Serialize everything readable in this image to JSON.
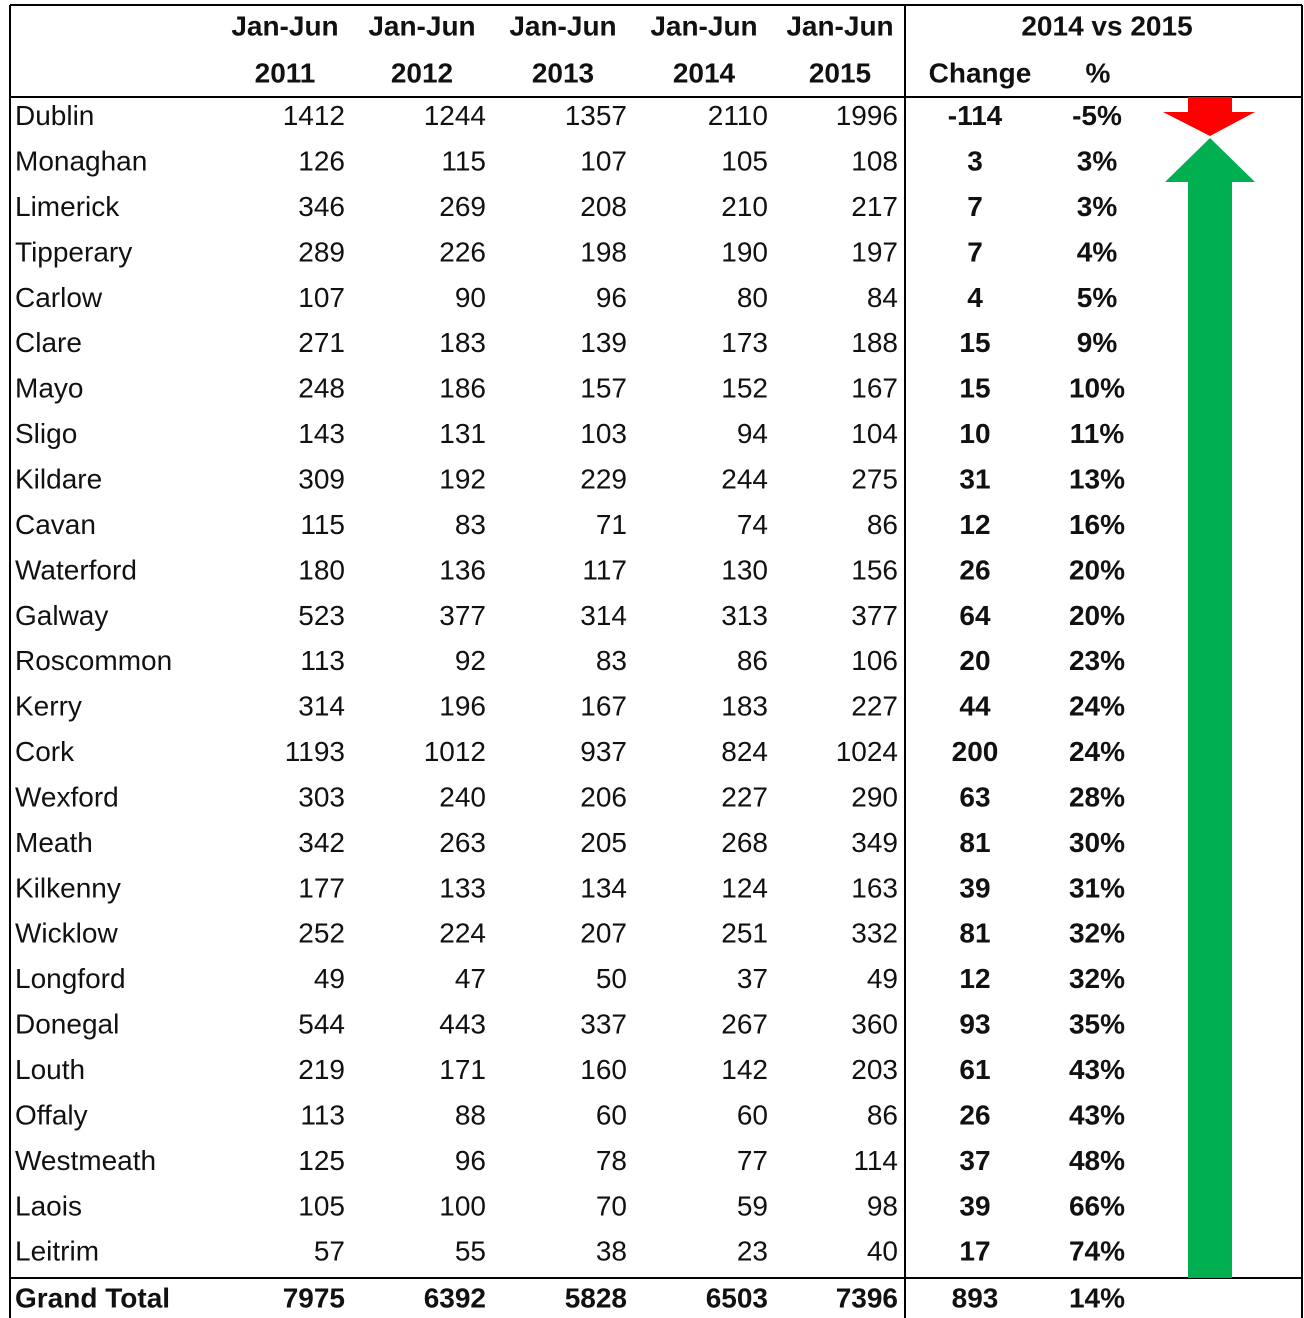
{
  "table": {
    "header": {
      "group": "2014 vs 2015",
      "change": "Change",
      "percent": "%",
      "periods": [
        {
          "line1": "Jan-Jun",
          "line2": "2011"
        },
        {
          "line1": "Jan-Jun",
          "line2": "2012"
        },
        {
          "line1": "Jan-Jun",
          "line2": "2013"
        },
        {
          "line1": "Jan-Jun",
          "line2": "2014"
        },
        {
          "line1": "Jan-Jun",
          "line2": "2015"
        }
      ]
    },
    "rows": [
      [
        "Dublin",
        1412,
        1244,
        1357,
        2110,
        1996,
        -114,
        "-5%"
      ],
      [
        "Monaghan",
        126,
        115,
        107,
        105,
        108,
        3,
        "3%"
      ],
      [
        "Limerick",
        346,
        269,
        208,
        210,
        217,
        7,
        "3%"
      ],
      [
        "Tipperary",
        289,
        226,
        198,
        190,
        197,
        7,
        "4%"
      ],
      [
        "Carlow",
        107,
        90,
        96,
        80,
        84,
        4,
        "5%"
      ],
      [
        "Clare",
        271,
        183,
        139,
        173,
        188,
        15,
        "9%"
      ],
      [
        "Mayo",
        248,
        186,
        157,
        152,
        167,
        15,
        "10%"
      ],
      [
        "Sligo",
        143,
        131,
        103,
        94,
        104,
        10,
        "11%"
      ],
      [
        "Kildare",
        309,
        192,
        229,
        244,
        275,
        31,
        "13%"
      ],
      [
        "Cavan",
        115,
        83,
        71,
        74,
        86,
        12,
        "16%"
      ],
      [
        "Waterford",
        180,
        136,
        117,
        130,
        156,
        26,
        "20%"
      ],
      [
        "Galway",
        523,
        377,
        314,
        313,
        377,
        64,
        "20%"
      ],
      [
        "Roscommon",
        113,
        92,
        83,
        86,
        106,
        20,
        "23%"
      ],
      [
        "Kerry",
        314,
        196,
        167,
        183,
        227,
        44,
        "24%"
      ],
      [
        "Cork",
        1193,
        1012,
        937,
        824,
        1024,
        200,
        "24%"
      ],
      [
        "Wexford",
        303,
        240,
        206,
        227,
        290,
        63,
        "28%"
      ],
      [
        "Meath",
        342,
        263,
        205,
        268,
        349,
        81,
        "30%"
      ],
      [
        "Kilkenny",
        177,
        133,
        134,
        124,
        163,
        39,
        "31%"
      ],
      [
        "Wicklow",
        252,
        224,
        207,
        251,
        332,
        81,
        "32%"
      ],
      [
        "Longford",
        49,
        47,
        50,
        37,
        49,
        12,
        "32%"
      ],
      [
        "Donegal",
        544,
        443,
        337,
        267,
        360,
        93,
        "35%"
      ],
      [
        "Louth",
        219,
        171,
        160,
        142,
        203,
        61,
        "43%"
      ],
      [
        "Offaly",
        113,
        88,
        60,
        60,
        86,
        26,
        "43%"
      ],
      [
        "Westmeath",
        125,
        96,
        78,
        77,
        114,
        37,
        "48%"
      ],
      [
        "Laois",
        105,
        100,
        70,
        59,
        98,
        39,
        "66%"
      ],
      [
        "Leitrim",
        57,
        55,
        38,
        23,
        40,
        17,
        "74%"
      ]
    ],
    "total": [
      "Grand Total",
      7975,
      6392,
      5828,
      6503,
      7396,
      893,
      "14%"
    ]
  }
}
